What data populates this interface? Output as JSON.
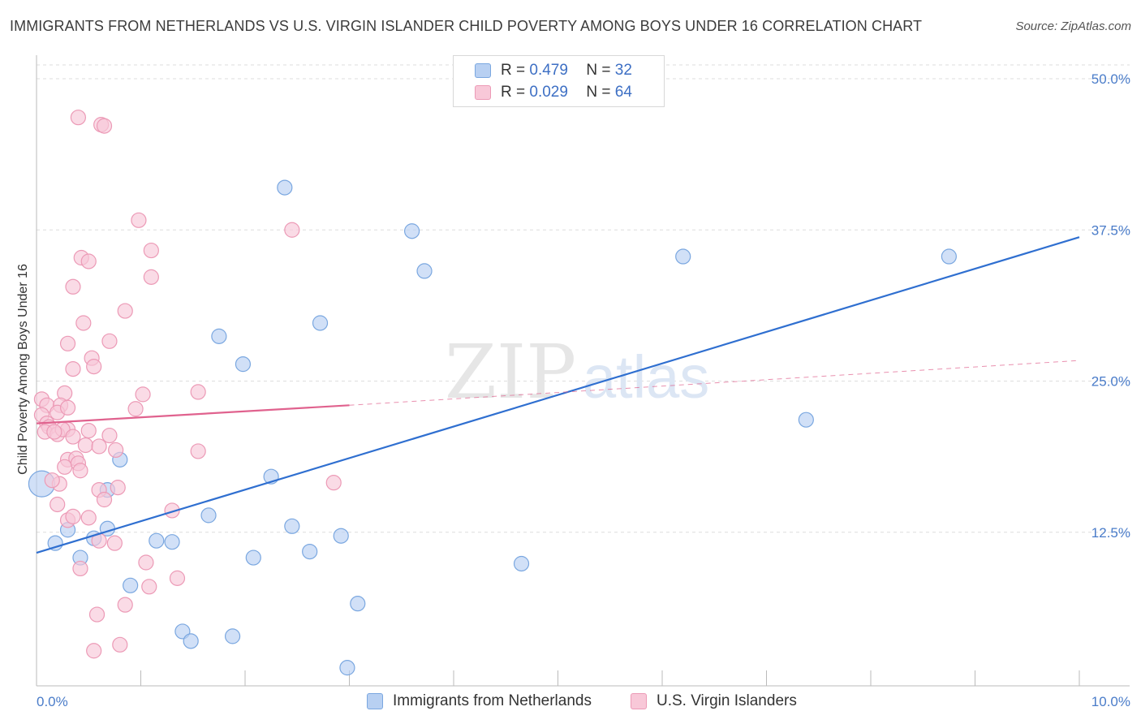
{
  "chart_data": {
    "type": "scatter",
    "title": "IMMIGRANTS FROM NETHERLANDS VS U.S. VIRGIN ISLANDER CHILD POVERTY AMONG BOYS UNDER 16 CORRELATION CHART",
    "source": "Source: ZipAtlas.com",
    "ylabel": "Child Poverty Among Boys Under 16",
    "xlim": [
      0,
      10
    ],
    "ylim": [
      0,
      50
    ],
    "x_tick_labels": [
      "0.0%",
      "10.0%"
    ],
    "y_ticks": [
      12.5,
      25.0,
      37.5,
      50.0
    ],
    "y_tick_labels": [
      "12.5%",
      "25.0%",
      "37.5%",
      "50.0%"
    ],
    "watermark": {
      "zip": "ZIP",
      "atlas": "atlas"
    },
    "series": [
      {
        "name": "Immigrants from Netherlands",
        "color": "#7aa7e0",
        "fill": "#b8d0f2",
        "R": "0.479",
        "N": "32",
        "trend": {
          "x0": 0.0,
          "y0": 10.8,
          "x1": 10.0,
          "y1": 36.9,
          "color": "#2f6fd0"
        },
        "points": [
          [
            0.05,
            16.5
          ],
          [
            0.18,
            11.6
          ],
          [
            0.3,
            12.7
          ],
          [
            0.42,
            10.4
          ],
          [
            0.55,
            12.0
          ],
          [
            0.68,
            12.8
          ],
          [
            0.8,
            18.5
          ],
          [
            0.9,
            8.1
          ],
          [
            1.15,
            11.8
          ],
          [
            1.3,
            11.7
          ],
          [
            1.4,
            4.3
          ],
          [
            1.48,
            3.5
          ],
          [
            1.65,
            13.9
          ],
          [
            1.75,
            28.7
          ],
          [
            1.88,
            3.9
          ],
          [
            1.98,
            26.4
          ],
          [
            2.08,
            10.4
          ],
          [
            2.25,
            17.1
          ],
          [
            2.38,
            41.0
          ],
          [
            2.45,
            13.0
          ],
          [
            2.62,
            10.9
          ],
          [
            2.72,
            29.8
          ],
          [
            2.92,
            12.2
          ],
          [
            2.98,
            1.3
          ],
          [
            3.08,
            6.6
          ],
          [
            3.6,
            37.4
          ],
          [
            3.72,
            34.1
          ],
          [
            4.65,
            9.9
          ],
          [
            6.2,
            35.3
          ],
          [
            7.38,
            21.8
          ],
          [
            8.75,
            35.3
          ],
          [
            0.68,
            16.0
          ]
        ]
      },
      {
        "name": "U.S. Virgin Islanders",
        "color": "#ec9ab6",
        "fill": "#f8c8d8",
        "R": "0.029",
        "N": "64",
        "trend": {
          "x0": 0.0,
          "y0": 21.5,
          "x1": 3.0,
          "y1": 23.0,
          "dash_x1": 10.0,
          "dash_y1": 26.7,
          "color": "#e0628e"
        },
        "points": [
          [
            0.4,
            46.8
          ],
          [
            0.62,
            46.2
          ],
          [
            0.65,
            46.1
          ],
          [
            0.98,
            38.3
          ],
          [
            2.45,
            37.5
          ],
          [
            1.1,
            35.8
          ],
          [
            0.43,
            35.2
          ],
          [
            0.5,
            34.9
          ],
          [
            1.1,
            33.6
          ],
          [
            0.35,
            32.8
          ],
          [
            0.85,
            30.8
          ],
          [
            0.45,
            29.8
          ],
          [
            0.7,
            28.3
          ],
          [
            0.3,
            28.1
          ],
          [
            0.53,
            26.9
          ],
          [
            0.35,
            26.0
          ],
          [
            0.55,
            26.2
          ],
          [
            1.02,
            23.9
          ],
          [
            1.55,
            24.1
          ],
          [
            0.27,
            24.0
          ],
          [
            0.05,
            23.5
          ],
          [
            0.1,
            23.0
          ],
          [
            0.23,
            23.0
          ],
          [
            0.2,
            22.4
          ],
          [
            0.3,
            22.8
          ],
          [
            0.95,
            22.7
          ],
          [
            0.05,
            22.2
          ],
          [
            0.1,
            21.5
          ],
          [
            0.3,
            21.0
          ],
          [
            0.12,
            21.2
          ],
          [
            0.08,
            20.8
          ],
          [
            0.2,
            20.6
          ],
          [
            0.25,
            21.0
          ],
          [
            0.17,
            20.8
          ],
          [
            0.5,
            20.9
          ],
          [
            0.35,
            20.4
          ],
          [
            0.7,
            20.5
          ],
          [
            0.47,
            19.7
          ],
          [
            0.6,
            19.6
          ],
          [
            1.55,
            19.2
          ],
          [
            0.76,
            19.3
          ],
          [
            0.3,
            18.5
          ],
          [
            0.38,
            18.6
          ],
          [
            0.27,
            17.9
          ],
          [
            0.4,
            18.2
          ],
          [
            0.42,
            17.6
          ],
          [
            0.22,
            16.5
          ],
          [
            0.15,
            16.8
          ],
          [
            0.6,
            16.0
          ],
          [
            0.78,
            16.2
          ],
          [
            2.85,
            16.6
          ],
          [
            0.65,
            15.2
          ],
          [
            0.2,
            14.8
          ],
          [
            1.3,
            14.3
          ],
          [
            0.5,
            13.7
          ],
          [
            0.3,
            13.5
          ],
          [
            0.35,
            13.8
          ],
          [
            0.6,
            11.8
          ],
          [
            0.75,
            11.6
          ],
          [
            1.05,
            10.0
          ],
          [
            0.42,
            9.5
          ],
          [
            1.35,
            8.7
          ],
          [
            1.08,
            8.0
          ],
          [
            0.85,
            6.5
          ]
        ],
        "extra_points": [
          [
            0.58,
            5.7
          ],
          [
            0.55,
            2.7
          ],
          [
            0.8,
            3.2
          ]
        ]
      }
    ]
  },
  "legend": {
    "r_label": "R =",
    "n_label": "N ="
  }
}
